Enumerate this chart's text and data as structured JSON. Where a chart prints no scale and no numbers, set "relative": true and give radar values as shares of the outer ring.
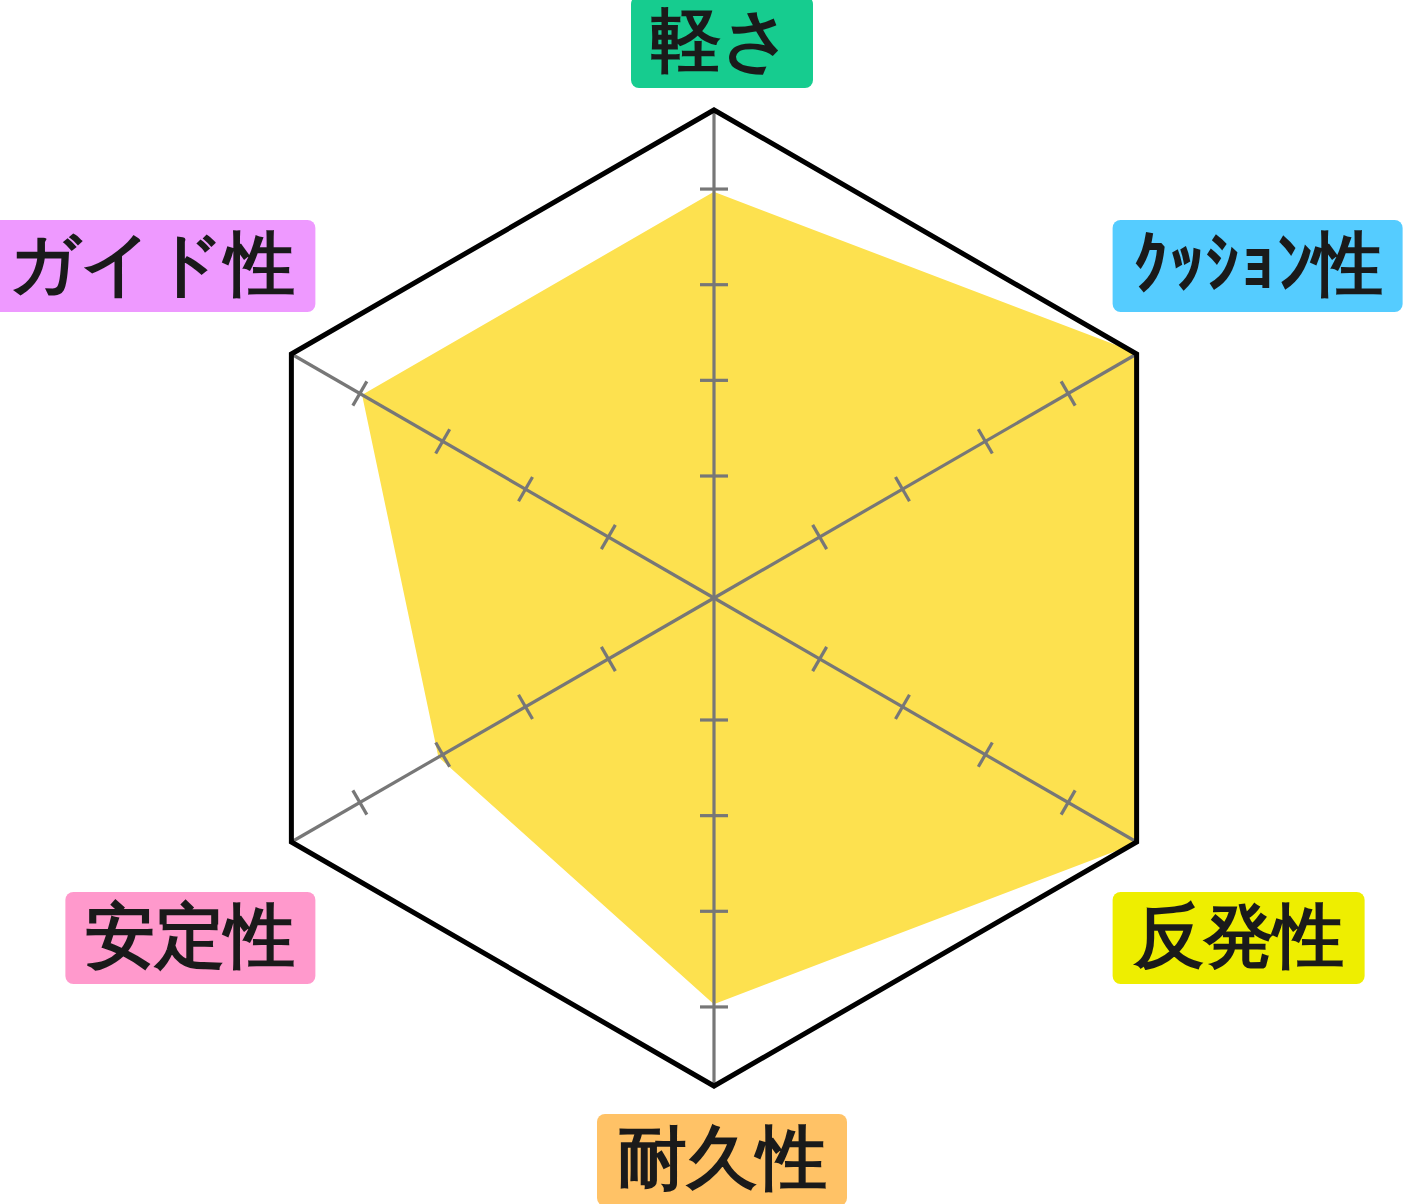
{
  "chart_data": {
    "type": "radar",
    "categories": [
      "軽さ",
      "ｸｯｼｮﾝ性",
      "反発性",
      "耐久性",
      "安定性",
      "ガイド性"
    ],
    "relative": true,
    "grid": true,
    "series": [
      {
        "color": "#fde14f",
        "values": [
          0.83,
          1,
          1,
          0.83,
          0.65,
          0.83
        ]
      }
    ]
  }
}
